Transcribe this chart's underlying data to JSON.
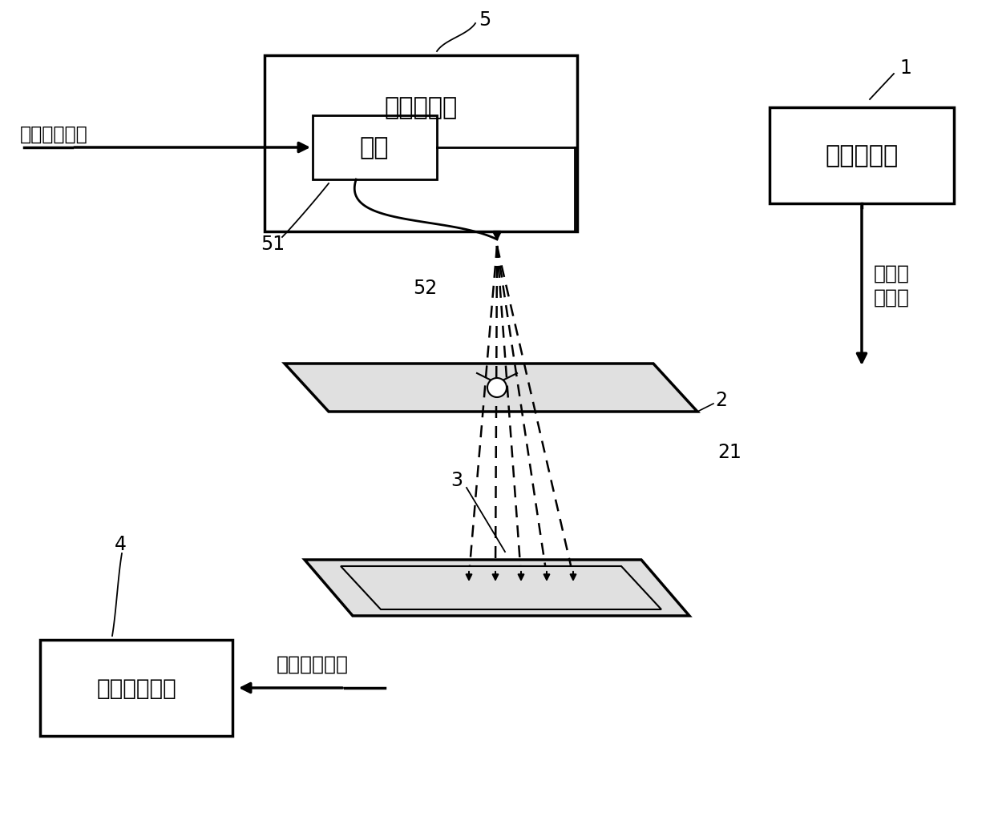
{
  "bg_color": "#ffffff",
  "line_color": "#000000",
  "font_size_title": 20,
  "font_size_label": 17,
  "font_size_num": 16,
  "labels": {
    "laser_engraver": "激光雕刻机",
    "motor": "马达",
    "motor_signal": "马达控制信号",
    "signal_generator": "信号产生器",
    "first_rf_line1": "第一射",
    "first_rf_line2": "频信号",
    "second_rf_signal": "第二射频信号",
    "rf_measurement": "射频量测设备",
    "num1": "1",
    "num2": "2",
    "num21": "21",
    "num3": "3",
    "num4": "4",
    "num5": "5",
    "num51": "51",
    "num52": "52"
  }
}
